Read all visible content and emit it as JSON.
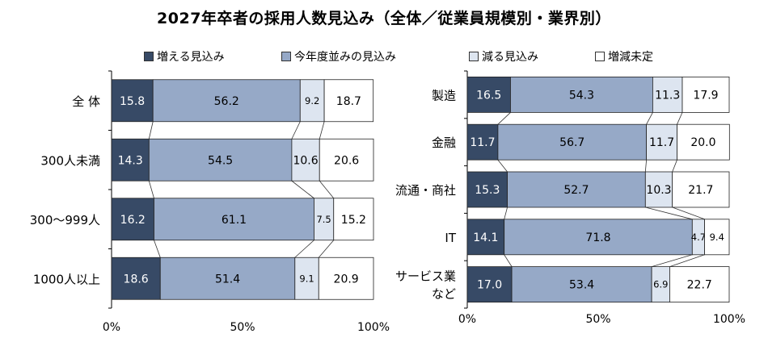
{
  "title": "2027年卒者の採用人数見込み（全体／従業員規模別・業界別）",
  "legend": [
    {
      "label": "増える見込み",
      "color": "#374a66"
    },
    {
      "label": "今年度並みの見込み",
      "color": "#96a9c7"
    },
    {
      "label": "減る見込み",
      "color": "#dde5f0"
    },
    {
      "label": "増減未定",
      "color": "#ffffff"
    }
  ],
  "chart_data": [
    {
      "type": "bar",
      "orientation": "horizontal",
      "stacked": true,
      "categories": [
        "全 体",
        "300人未満",
        "300～999人",
        "1000人以上"
      ],
      "series": [
        {
          "name": "増える見込み",
          "values": [
            15.8,
            14.3,
            16.2,
            18.6
          ]
        },
        {
          "name": "今年度並みの見込み",
          "values": [
            56.2,
            54.5,
            61.1,
            51.4
          ]
        },
        {
          "name": "減る見込み",
          "values": [
            9.2,
            10.6,
            7.5,
            9.1
          ]
        },
        {
          "name": "増減未定",
          "values": [
            18.7,
            20.6,
            15.2,
            20.9
          ]
        }
      ],
      "xlim": [
        0,
        100
      ],
      "xticks": [
        "0%",
        "50%",
        "100%"
      ],
      "grid": false,
      "legend_position": "top"
    },
    {
      "type": "bar",
      "orientation": "horizontal",
      "stacked": true,
      "categories": [
        "製造",
        "金融",
        "流通・商社",
        "IT",
        "サービス業|など"
      ],
      "series": [
        {
          "name": "増える見込み",
          "values": [
            16.5,
            11.7,
            15.3,
            14.1,
            17.0
          ]
        },
        {
          "name": "今年度並みの見込み",
          "values": [
            54.3,
            56.7,
            52.7,
            71.8,
            53.4
          ]
        },
        {
          "name": "減る見込み",
          "values": [
            11.3,
            11.7,
            10.3,
            4.7,
            6.9
          ]
        },
        {
          "name": "増減未定",
          "values": [
            17.9,
            20.0,
            21.7,
            9.4,
            22.7
          ]
        }
      ],
      "xlim": [
        0,
        100
      ],
      "xticks": [
        "0%",
        "50%",
        "100%"
      ],
      "grid": false,
      "legend_position": "top"
    }
  ]
}
